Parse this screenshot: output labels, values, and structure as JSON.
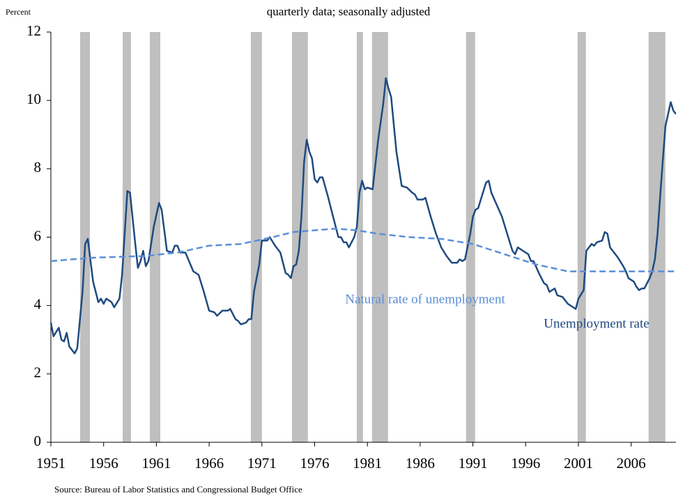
{
  "chart_data": {
    "type": "line",
    "subtitle": "quarterly data; seasonally adjusted",
    "ylabel": "Percent",
    "source": "Source: Bureau of Labor Statistics and Congressional Budget Office",
    "xlim": [
      1951,
      2010.25
    ],
    "xticks": [
      1951,
      1956,
      1961,
      1966,
      1971,
      1976,
      1981,
      1986,
      1991,
      1996,
      2001,
      2006
    ],
    "ylim": [
      0,
      12
    ],
    "yticks": [
      0,
      2,
      4,
      6,
      8,
      10,
      12
    ],
    "recession_color": "#bfbfbf",
    "recessions": [
      [
        1953.77,
        1954.7
      ],
      [
        1957.8,
        1958.59
      ],
      [
        1960.38,
        1961.37
      ],
      [
        1969.95,
        1971.0
      ],
      [
        1973.85,
        1975.36
      ],
      [
        1979.99,
        1980.58
      ],
      [
        1981.44,
        1982.96
      ],
      [
        1990.35,
        1991.21
      ],
      [
        2000.92,
        2001.71
      ],
      [
        2007.65,
        2009.24
      ]
    ],
    "series": [
      {
        "name": "Unemployment rate",
        "color": "#1f4a80",
        "dashed": false,
        "x": [
          1951.0,
          1951.25,
          1951.75,
          1952.0,
          1952.25,
          1952.5,
          1952.75,
          1953.25,
          1953.5,
          1954.0,
          1954.25,
          1954.5,
          1955.0,
          1955.5,
          1955.75,
          1956.0,
          1956.25,
          1956.75,
          1957.0,
          1957.5,
          1957.75,
          1958.25,
          1958.5,
          1959.0,
          1959.25,
          1959.5,
          1959.75,
          1960.0,
          1960.25,
          1960.75,
          1961.25,
          1961.5,
          1962.0,
          1962.5,
          1962.75,
          1963.0,
          1963.25,
          1963.75,
          1964.5,
          1965.0,
          1965.5,
          1966.0,
          1966.5,
          1966.75,
          1967.25,
          1967.75,
          1968.0,
          1968.5,
          1968.75,
          1969.0,
          1969.5,
          1969.75,
          1970.0,
          1970.25,
          1970.75,
          1971.0,
          1971.5,
          1971.75,
          1972.25,
          1972.75,
          1973.25,
          1973.5,
          1973.75,
          1974.0,
          1974.25,
          1974.5,
          1974.75,
          1975.0,
          1975.25,
          1975.5,
          1975.75,
          1976.0,
          1976.25,
          1976.5,
          1976.75,
          1977.25,
          1977.75,
          1978.25,
          1978.5,
          1978.75,
          1979.0,
          1979.25,
          1979.5,
          1979.75,
          1980.0,
          1980.25,
          1980.5,
          1980.75,
          1981.0,
          1981.5,
          1981.75,
          1982.0,
          1982.5,
          1982.75,
          1983.0,
          1983.25,
          1983.75,
          1984.25,
          1984.75,
          1985.25,
          1985.5,
          1985.75,
          1986.25,
          1986.5,
          1987.0,
          1987.5,
          1988.0,
          1988.5,
          1989.0,
          1989.5,
          1989.75,
          1990.0,
          1990.25,
          1990.75,
          1991.0,
          1991.25,
          1991.5,
          1991.75,
          1992.25,
          1992.5,
          1992.75,
          1993.25,
          1993.75,
          1994.25,
          1994.75,
          1995.0,
          1995.25,
          1995.75,
          1996.25,
          1996.5,
          1996.75,
          1997.25,
          1997.75,
          1998.0,
          1998.25,
          1998.75,
          1999.0,
          1999.5,
          2000.0,
          2000.5,
          2000.75,
          2001.0,
          2001.5,
          2001.75,
          2002.25,
          2002.5,
          2002.75,
          2003.25,
          2003.5,
          2003.75,
          2004.0,
          2004.5,
          2004.75,
          2005.25,
          2005.5,
          2005.75,
          2006.25,
          2006.5,
          2006.75,
          2007.0,
          2007.25,
          2007.5,
          2007.75,
          2008.0,
          2008.25,
          2008.5,
          2008.75,
          2009.0,
          2009.25,
          2009.5,
          2009.75,
          2010.0,
          2010.25
        ],
        "values": [
          3.5,
          3.1,
          3.35,
          3.0,
          2.95,
          3.2,
          2.8,
          2.6,
          2.75,
          4.4,
          5.8,
          5.95,
          4.7,
          4.1,
          4.2,
          4.05,
          4.2,
          4.1,
          3.95,
          4.2,
          4.9,
          7.35,
          7.3,
          5.8,
          5.1,
          5.3,
          5.6,
          5.15,
          5.3,
          6.3,
          7.0,
          6.8,
          5.6,
          5.55,
          5.75,
          5.75,
          5.55,
          5.55,
          5.0,
          4.9,
          4.4,
          3.85,
          3.8,
          3.7,
          3.85,
          3.85,
          3.9,
          3.6,
          3.55,
          3.45,
          3.5,
          3.6,
          3.6,
          4.4,
          5.2,
          5.9,
          5.9,
          6.0,
          5.75,
          5.55,
          4.95,
          4.9,
          4.8,
          5.15,
          5.2,
          5.6,
          6.6,
          8.2,
          8.85,
          8.5,
          8.3,
          7.7,
          7.6,
          7.75,
          7.75,
          7.2,
          6.6,
          6.0,
          6.0,
          5.85,
          5.85,
          5.7,
          5.85,
          6.0,
          6.3,
          7.3,
          7.65,
          7.4,
          7.45,
          7.4,
          8.1,
          8.8,
          9.9,
          10.65,
          10.35,
          10.1,
          8.5,
          7.5,
          7.45,
          7.3,
          7.25,
          7.1,
          7.1,
          7.15,
          6.6,
          6.1,
          5.7,
          5.45,
          5.25,
          5.25,
          5.35,
          5.3,
          5.35,
          6.1,
          6.6,
          6.8,
          6.85,
          7.1,
          7.6,
          7.65,
          7.3,
          6.95,
          6.6,
          6.1,
          5.6,
          5.5,
          5.7,
          5.6,
          5.5,
          5.3,
          5.3,
          4.95,
          4.65,
          4.6,
          4.4,
          4.5,
          4.3,
          4.25,
          4.05,
          3.95,
          3.9,
          4.2,
          4.45,
          5.6,
          5.8,
          5.75,
          5.85,
          5.9,
          6.15,
          6.1,
          5.7,
          5.5,
          5.4,
          5.15,
          5.0,
          4.8,
          4.7,
          4.55,
          4.45,
          4.5,
          4.5,
          4.65,
          4.8,
          5.0,
          5.35,
          6.1,
          7.2,
          8.25,
          9.25,
          9.6,
          9.95,
          9.7,
          9.6
        ]
      },
      {
        "name": "Natural rate of unemployment",
        "color": "#5b8fd6",
        "dashed": true,
        "x": [
          1951,
          1955,
          1960,
          1963,
          1966,
          1969,
          1972,
          1974,
          1976,
          1978,
          1980,
          1982,
          1985,
          1988,
          1991,
          1994,
          1997,
          2000,
          2003,
          2006,
          2010.25
        ],
        "values": [
          5.3,
          5.4,
          5.45,
          5.55,
          5.75,
          5.8,
          6.0,
          6.15,
          6.2,
          6.25,
          6.2,
          6.1,
          6.0,
          5.95,
          5.8,
          5.5,
          5.2,
          5.0,
          5.0,
          5.0,
          5.0
        ]
      }
    ]
  }
}
